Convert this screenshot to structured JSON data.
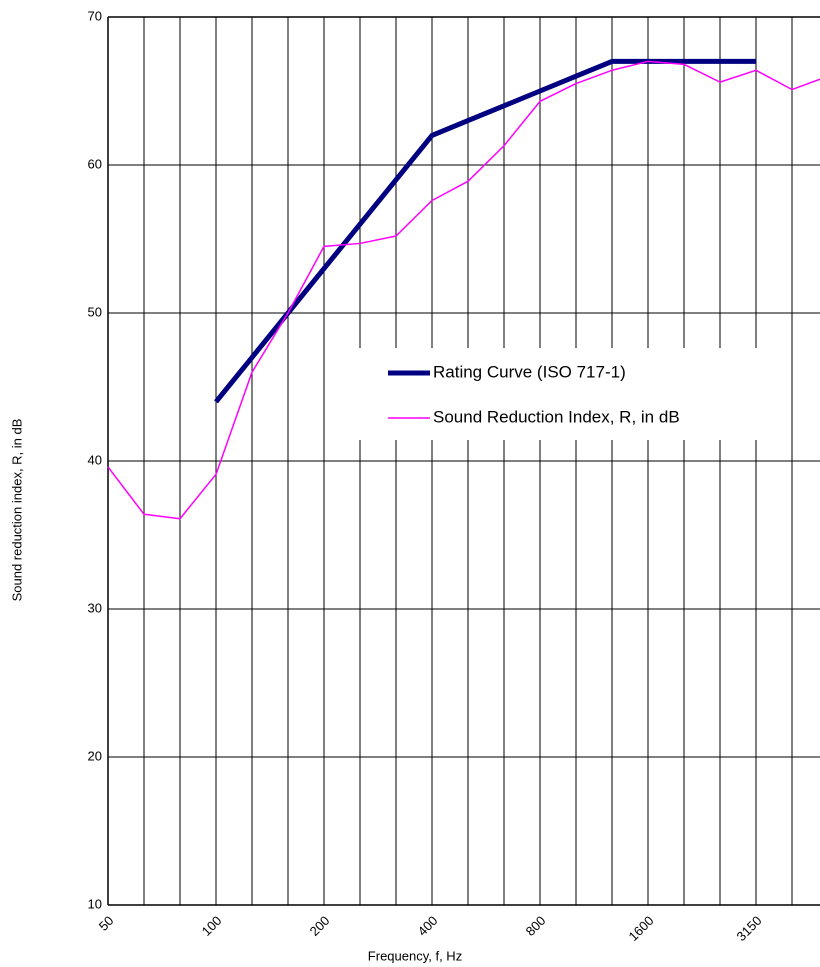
{
  "chart_data": {
    "type": "line",
    "xlabel": "Frequency, f, Hz",
    "ylabel": "Sound reduction index, R, in dB",
    "categories": [
      "50",
      null,
      null,
      "100",
      null,
      null,
      "200",
      null,
      null,
      "400",
      null,
      null,
      "800",
      null,
      null,
      "1600",
      null,
      null,
      "3150",
      null,
      null
    ],
    "series": [
      {
        "name": "Rating Curve (ISO 717-1)",
        "color": "#000080",
        "width": 5,
        "values": [
          null,
          null,
          null,
          44,
          47,
          50,
          53,
          56,
          59,
          62,
          63,
          64,
          65,
          66,
          67,
          67,
          67,
          67,
          67,
          null,
          null
        ]
      },
      {
        "name": "Sound Reduction Index, R, in dB",
        "color": "#ff00ff",
        "width": 1.5,
        "values": [
          39.6,
          36.4,
          36.1,
          39.1,
          46,
          50,
          54.5,
          54.7,
          55.2,
          57.6,
          58.9,
          61.3,
          64.3,
          65.5,
          66.4,
          67,
          66.8,
          65.6,
          66.4,
          65.1,
          66
        ]
      }
    ],
    "ylim": [
      10,
      70
    ],
    "yticks": [
      10,
      20,
      30,
      40,
      50,
      60,
      70
    ],
    "grid": true,
    "legend": "right"
  }
}
